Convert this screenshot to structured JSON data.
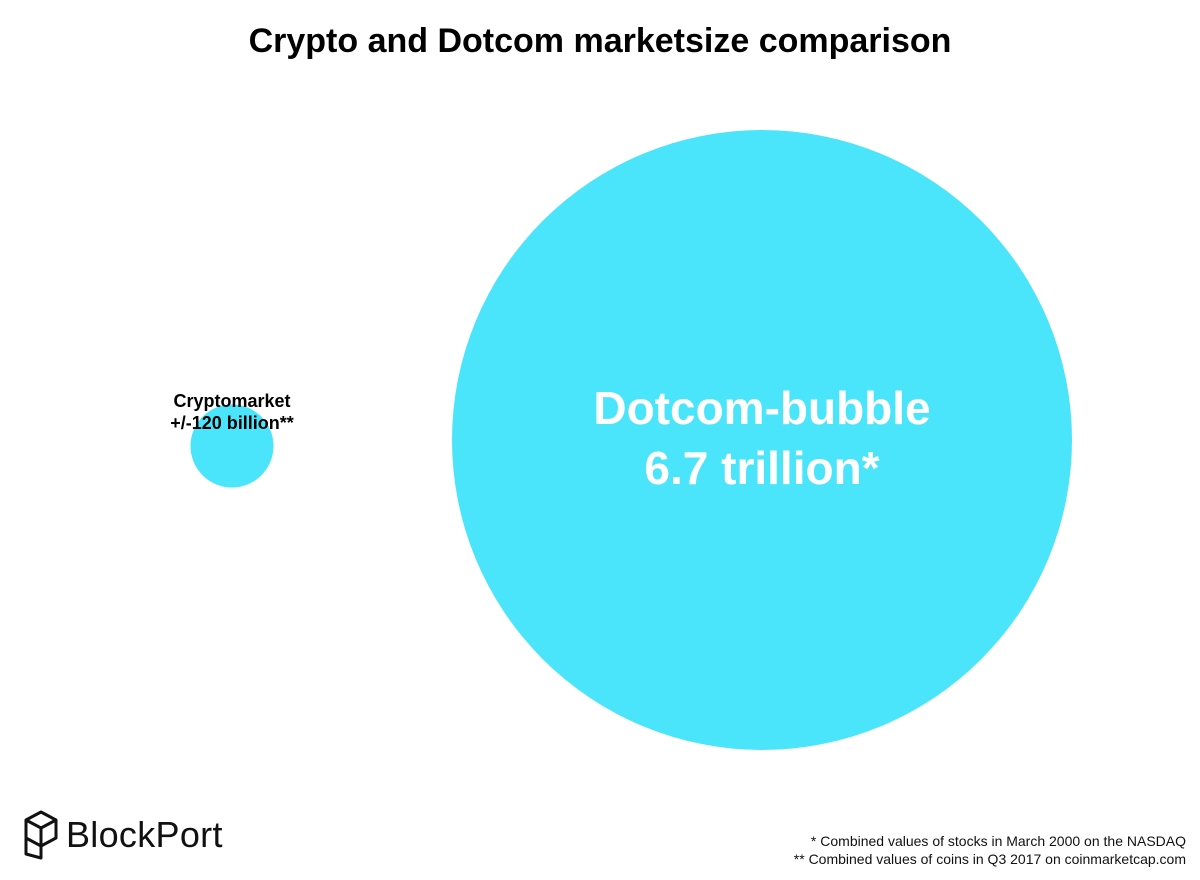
{
  "colors": {
    "bubble": "#4AE4FB",
    "text_dark": "#000000",
    "text_light": "#FFFFFF"
  },
  "chart_data": {
    "type": "bubble",
    "title": "Crypto and Dotcom marketsize comparison",
    "series": [
      {
        "name": "Cryptomarket",
        "label_line1": "Cryptomarket",
        "label_line2": "+/-120 billion**",
        "value": 120000000000
      },
      {
        "name": "Dotcom-bubble",
        "label_line1": "Dotcom-bubble",
        "label_line2": "6.7 trillion*",
        "value": 6700000000000
      }
    ]
  },
  "brand": {
    "logo_icon": "blockport-cube-icon",
    "name": "BlockPort"
  },
  "footnotes": [
    "* Combined values of stocks in March 2000 on the NASDAQ",
    "** Combined values of coins in Q3 2017 on coinmarketcap.com"
  ]
}
